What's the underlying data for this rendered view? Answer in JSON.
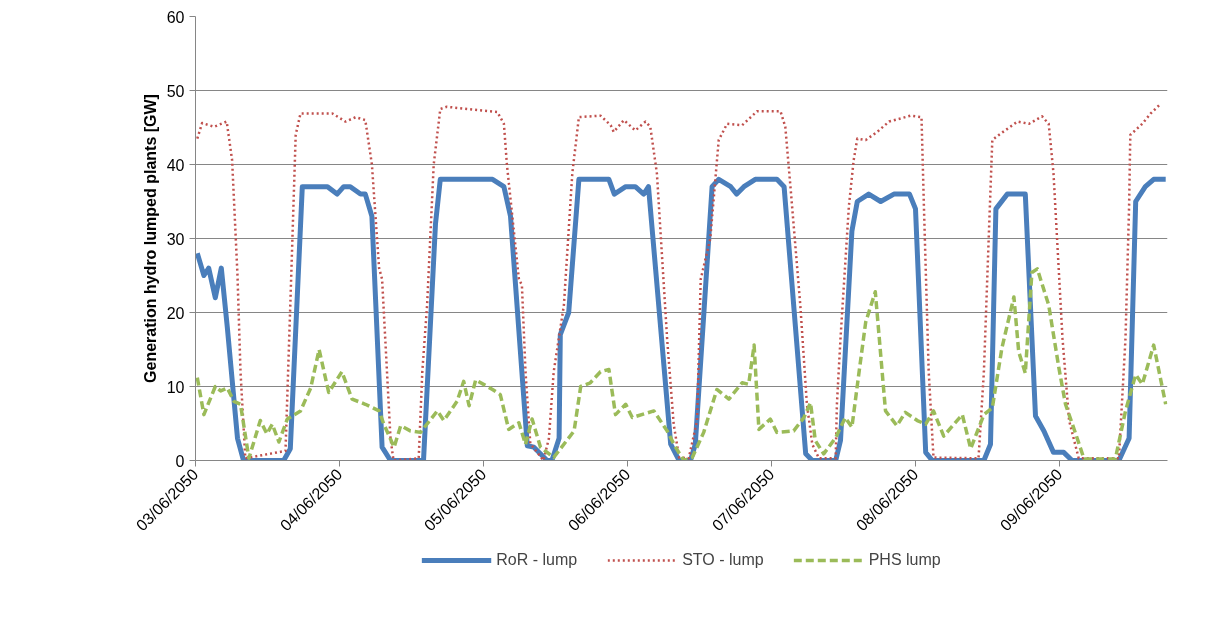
{
  "chart_data": {
    "type": "line",
    "ylabel": "Generation hydro lumped plants [GW]",
    "xlim": [
      "2050-06-03T00:00",
      "2050-06-09T18:00"
    ],
    "xticks": [
      {
        "value": "2050-06-03",
        "label": "03/06/2050"
      },
      {
        "value": "2050-06-04",
        "label": "04/06/2050"
      },
      {
        "value": "2050-06-05",
        "label": "05/06/2050"
      },
      {
        "value": "2050-06-06",
        "label": "06/06/2050"
      },
      {
        "value": "2050-06-07",
        "label": "07/06/2050"
      },
      {
        "value": "2050-06-08",
        "label": "08/06/2050"
      },
      {
        "value": "2050-06-09",
        "label": "09/06/2050"
      }
    ],
    "ylim": [
      0,
      60
    ],
    "yticks": [
      0,
      10,
      20,
      30,
      40,
      50,
      60
    ],
    "grid": "y",
    "legend": "bottom",
    "marker": "none",
    "series": [
      {
        "name": "RoR - lump",
        "color": "#4a7ebb",
        "line_style": "solid",
        "x": [
          "2050-06-03T00:18",
          "2050-06-03T01:24",
          "2050-06-03T02:12",
          "2050-06-03T03:18",
          "2050-06-03T04:18",
          "2050-06-03T05:18",
          "2050-06-03T07:00",
          "2050-06-03T08:00",
          "2050-06-03T14:42",
          "2050-06-03T15:48",
          "2050-06-03T17:48",
          "2050-06-03T18:54",
          "2050-06-03T22:00",
          "2050-06-03T23:36",
          "2050-06-04T00:42",
          "2050-06-04T01:48",
          "2050-06-04T03:30",
          "2050-06-04T04:18",
          "2050-06-04T05:24",
          "2050-06-04T07:06",
          "2050-06-04T08:30",
          "2050-06-04T14:00",
          "2050-06-04T16:00",
          "2050-06-04T16:48",
          "2050-06-04T21:18",
          "2050-06-04T22:42",
          "2050-06-05T01:30",
          "2050-06-05T03:24",
          "2050-06-05T04:30",
          "2050-06-05T07:18",
          "2050-06-05T08:24",
          "2050-06-05T10:36",
          "2050-06-05T11:24",
          "2050-06-05T12:36",
          "2050-06-05T12:48",
          "2050-06-05T14:12",
          "2050-06-05T15:54",
          "2050-06-05T18:42",
          "2050-06-05T20:54",
          "2050-06-05T21:48",
          "2050-06-05T23:42",
          "2050-06-06T01:18",
          "2050-06-06T02:42",
          "2050-06-06T03:30",
          "2050-06-06T07:12",
          "2050-06-06T08:36",
          "2050-06-06T10:30",
          "2050-06-06T11:18",
          "2050-06-06T14:06",
          "2050-06-06T15:12",
          "2050-06-06T17:12",
          "2050-06-06T18:12",
          "2050-06-06T19:24",
          "2050-06-06T21:18",
          "2050-06-07T00:54",
          "2050-06-07T02:06",
          "2050-06-07T05:42",
          "2050-06-07T06:48",
          "2050-06-07T10:42",
          "2050-06-07T11:30",
          "2050-06-07T13:24",
          "2050-06-07T14:18",
          "2050-06-07T16:12",
          "2050-06-07T18:12",
          "2050-06-07T20:24",
          "2050-06-07T23:00",
          "2050-06-08T00:00",
          "2050-06-08T01:42",
          "2050-06-08T02:48",
          "2050-06-08T11:24",
          "2050-06-08T12:30",
          "2050-06-08T13:24",
          "2050-06-08T15:18",
          "2050-06-08T16:42",
          "2050-06-08T18:18",
          "2050-06-08T20:00",
          "2050-06-08T21:24",
          "2050-06-08T23:00",
          "2050-06-09T00:42",
          "2050-06-09T02:06",
          "2050-06-09T09:54",
          "2050-06-09T11:36",
          "2050-06-09T12:42",
          "2050-06-09T14:18",
          "2050-06-09T15:42",
          "2050-06-09T17:42"
        ],
        "values": [
          28,
          25,
          26,
          22,
          26,
          18,
          3,
          0,
          0,
          1.6,
          37,
          37,
          37,
          36,
          37,
          37,
          36,
          36,
          33,
          1.8,
          0,
          0,
          32,
          38,
          38,
          38,
          38,
          37,
          33,
          2,
          1.8,
          0,
          0,
          3,
          17,
          20,
          38,
          38,
          38,
          36,
          37,
          37,
          36,
          37,
          2.2,
          0,
          0,
          2.2,
          37,
          38,
          37,
          36,
          37,
          38,
          38,
          37,
          0.9,
          0,
          0,
          2.7,
          31,
          35,
          36,
          35,
          36,
          36,
          34,
          1.1,
          0,
          0,
          2.2,
          34,
          36,
          36,
          36,
          6,
          4,
          1.1,
          1.1,
          0,
          0,
          3,
          35,
          37,
          38,
          38
        ]
      },
      {
        "name": "STO - lump",
        "color": "#c0504d",
        "line_style": "dotted",
        "x": [
          "2050-06-03T00:18",
          "2050-06-03T01:06",
          "2050-06-03T03:06",
          "2050-06-03T05:12",
          "2050-06-03T06:06",
          "2050-06-03T07:00",
          "2050-06-03T07:30",
          "2050-06-03T08:18",
          "2050-06-03T15:00",
          "2050-06-03T15:48",
          "2050-06-03T16:42",
          "2050-06-03T17:30",
          "2050-06-03T22:48",
          "2050-06-04T01:00",
          "2050-06-04T02:42",
          "2050-06-04T04:18",
          "2050-06-04T05:24",
          "2050-06-04T06:36",
          "2050-06-04T07:06",
          "2050-06-04T08:30",
          "2050-06-04T09:00",
          "2050-06-04T13:12",
          "2050-06-04T13:48",
          "2050-06-04T14:36",
          "2050-06-04T15:42",
          "2050-06-04T16:48",
          "2050-06-04T17:54",
          "2050-06-04T22:24",
          "2050-06-05T02:18",
          "2050-06-05T03:24",
          "2050-06-05T03:54",
          "2050-06-05T05:54",
          "2050-06-05T06:24",
          "2050-06-05T07:00",
          "2050-06-05T07:48",
          "2050-06-05T10:00",
          "2050-06-05T10:54",
          "2050-06-05T11:42",
          "2050-06-05T13:24",
          "2050-06-05T14:48",
          "2050-06-05T15:54",
          "2050-06-05T19:30",
          "2050-06-05T21:12",
          "2050-06-05T21:42",
          "2050-06-05T23:24",
          "2050-06-06T01:18",
          "2050-06-06T03:00",
          "2050-06-06T03:48",
          "2050-06-06T04:54",
          "2050-06-06T06:36",
          "2050-06-06T07:42",
          "2050-06-06T08:36",
          "2050-06-06T10:12",
          "2050-06-06T11:36",
          "2050-06-06T12:12",
          "2050-06-06T13:48",
          "2050-06-06T15:12",
          "2050-06-06T16:36",
          "2050-06-06T19:06",
          "2050-06-06T21:36",
          "2050-06-07T01:30",
          "2050-06-07T02:18",
          "2050-06-07T03:12",
          "2050-06-07T04:48",
          "2050-06-07T05:54",
          "2050-06-07T06:48",
          "2050-06-07T07:54",
          "2050-06-07T10:42",
          "2050-06-07T10:54",
          "2050-06-07T11:30",
          "2050-06-07T12:54",
          "2050-06-07T13:42",
          "2050-06-07T14:18",
          "2050-06-07T15:42",
          "2050-06-07T17:36",
          "2050-06-07T19:36",
          "2050-06-07T23:12",
          "2050-06-08T01:00",
          "2050-06-08T01:24",
          "2050-06-08T02:12",
          "2050-06-08T03:00",
          "2050-06-08T10:30",
          "2050-06-08T11:24",
          "2050-06-08T12:12",
          "2050-06-08T12:48",
          "2050-06-08T13:54",
          "2050-06-08T17:00",
          "2050-06-08T18:54",
          "2050-06-08T21:06",
          "2050-06-08T22:12",
          "2050-06-08T23:00",
          "2050-06-09T00:30",
          "2050-06-09T01:36",
          "2050-06-09T03:12",
          "2050-06-09T09:54",
          "2050-06-09T11:00",
          "2050-06-09T11:36",
          "2050-06-09T11:48",
          "2050-06-09T13:48",
          "2050-06-09T15:12",
          "2050-06-09T16:36"
        ],
        "values": [
          43.5,
          45.6,
          45.1,
          45.8,
          40.6,
          25,
          12,
          0.3,
          1.3,
          21,
          44,
          46.9,
          46.9,
          45.8,
          46.4,
          46,
          40,
          26,
          24.5,
          3,
          0,
          0.3,
          12,
          21,
          40,
          47.5,
          47.8,
          47.4,
          47.1,
          45.5,
          40,
          24.5,
          23.7,
          12,
          2.3,
          0,
          3,
          12,
          21,
          38.8,
          46.4,
          46.6,
          45.3,
          44.4,
          46,
          44.6,
          45.8,
          45.1,
          38.8,
          16.5,
          4.9,
          0.4,
          0.3,
          5.4,
          24.5,
          30,
          43.3,
          45.5,
          45.3,
          47.2,
          47.2,
          45.1,
          36.6,
          21,
          7.6,
          2.2,
          0.3,
          0.3,
          7.6,
          16.5,
          34.4,
          40.6,
          43.5,
          43.3,
          44.4,
          45.8,
          46.6,
          46.4,
          34.4,
          12,
          0.4,
          0.3,
          12,
          30,
          43.3,
          44,
          45.8,
          45.5,
          46.5,
          45.5,
          38.8,
          16.5,
          5.4,
          0.3,
          0.3,
          16.5,
          34.4,
          44,
          45.5,
          46.9,
          48
        ]
      },
      {
        "name": "PHS lump",
        "color": "#9bbb59",
        "line_style": "dashed",
        "x": [
          "2050-06-03T00:18",
          "2050-06-03T01:24",
          "2050-06-03T03:18",
          "2050-06-03T04:12",
          "2050-06-03T05:18",
          "2050-06-03T06:24",
          "2050-06-03T07:30",
          "2050-06-03T08:54",
          "2050-06-03T10:48",
          "2050-06-03T11:54",
          "2050-06-03T12:48",
          "2050-06-03T13:54",
          "2050-06-03T15:18",
          "2050-06-03T17:30",
          "2050-06-03T19:12",
          "2050-06-03T20:36",
          "2050-06-03T22:12",
          "2050-06-04T00:24",
          "2050-06-04T02:06",
          "2050-06-04T04:18",
          "2050-06-04T06:36",
          "2050-06-04T07:24",
          "2050-06-04T09:06",
          "2050-06-04T10:12",
          "2050-06-04T11:48",
          "2050-06-04T13:30",
          "2050-06-04T16:18",
          "2050-06-04T17:24",
          "2050-06-04T19:36",
          "2050-06-04T20:42",
          "2050-06-04T21:36",
          "2050-06-04T22:42",
          "2050-06-05T01:30",
          "2050-06-05T02:48",
          "2050-06-05T04:12",
          "2050-06-05T05:54",
          "2050-06-05T07:00",
          "2050-06-05T08:06",
          "2050-06-05T09:30",
          "2050-06-05T11:42",
          "2050-06-05T15:06",
          "2050-06-05T16:12",
          "2050-06-05T17:48",
          "2050-06-05T19:30",
          "2050-06-05T20:54",
          "2050-06-05T22:00",
          "2050-06-05T23:42",
          "2050-06-06T00:48",
          "2050-06-06T04:24",
          "2050-06-06T06:36",
          "2050-06-06T08:00",
          "2050-06-06T09:24",
          "2050-06-06T10:48",
          "2050-06-06T12:42",
          "2050-06-06T14:54",
          "2050-06-06T16:54",
          "2050-06-06T19:06",
          "2050-06-06T20:12",
          "2050-06-06T21:06",
          "2050-06-06T21:54",
          "2050-06-06T23:48",
          "2050-06-07T00:54",
          "2050-06-07T03:42",
          "2050-06-07T05:24",
          "2050-06-07T06:30",
          "2050-06-07T07:18",
          "2050-06-07T08:42",
          "2050-06-07T10:42",
          "2050-06-07T12:18",
          "2050-06-07T13:24",
          "2050-06-07T14:36",
          "2050-06-07T15:42",
          "2050-06-07T17:18",
          "2050-06-07T19:00",
          "2050-06-07T20:54",
          "2050-06-07T22:18",
          "2050-06-08T00:18",
          "2050-06-08T01:42",
          "2050-06-08T03:00",
          "2050-06-08T04:42",
          "2050-06-08T07:48",
          "2050-06-08T09:12",
          "2050-06-08T11:24",
          "2050-06-08T12:48",
          "2050-06-08T14:24",
          "2050-06-08T16:24",
          "2050-06-08T17:12",
          "2050-06-08T18:18",
          "2050-06-08T19:24",
          "2050-06-08T20:18",
          "2050-06-08T22:12",
          "2050-06-08T23:54",
          "2050-06-09T01:00",
          "2050-06-09T02:42",
          "2050-06-09T04:06",
          "2050-06-09T09:18",
          "2050-06-09T11:00",
          "2050-06-09T12:42",
          "2050-06-09T13:48",
          "2050-06-09T15:42",
          "2050-06-09T17:42"
        ],
        "values": [
          11.2,
          6.2,
          10,
          9.4,
          9.8,
          8,
          7.6,
          0.3,
          5.4,
          3.6,
          4.9,
          2.5,
          5.6,
          6.7,
          9.8,
          15,
          9.2,
          12,
          8.3,
          7.6,
          6.7,
          4.9,
          1.8,
          4.7,
          4,
          3.8,
          6.7,
          5.4,
          8,
          10.7,
          7.4,
          10.9,
          9.6,
          8.9,
          4.2,
          5.1,
          2.2,
          5.6,
          1.8,
          0.4,
          4,
          10,
          10.5,
          12,
          12.3,
          6.2,
          7.6,
          5.8,
          6.7,
          4,
          1.8,
          0,
          0.4,
          3.8,
          9.6,
          8.3,
          10.5,
          10.3,
          15.6,
          4.2,
          5.6,
          3.8,
          4,
          5.8,
          7.8,
          2.7,
          0.9,
          3.1,
          5.8,
          4.5,
          12,
          18.7,
          22.8,
          6.7,
          4.7,
          6.5,
          5.4,
          4.9,
          6.7,
          3.3,
          6.2,
          1.6,
          6.2,
          7.1,
          15.2,
          22.1,
          14.7,
          11.8,
          25.4,
          25.9,
          21,
          12.5,
          7.6,
          3.6,
          0.2,
          0.2,
          6.7,
          11.6,
          10.3,
          15.6,
          7.6
        ]
      }
    ]
  }
}
